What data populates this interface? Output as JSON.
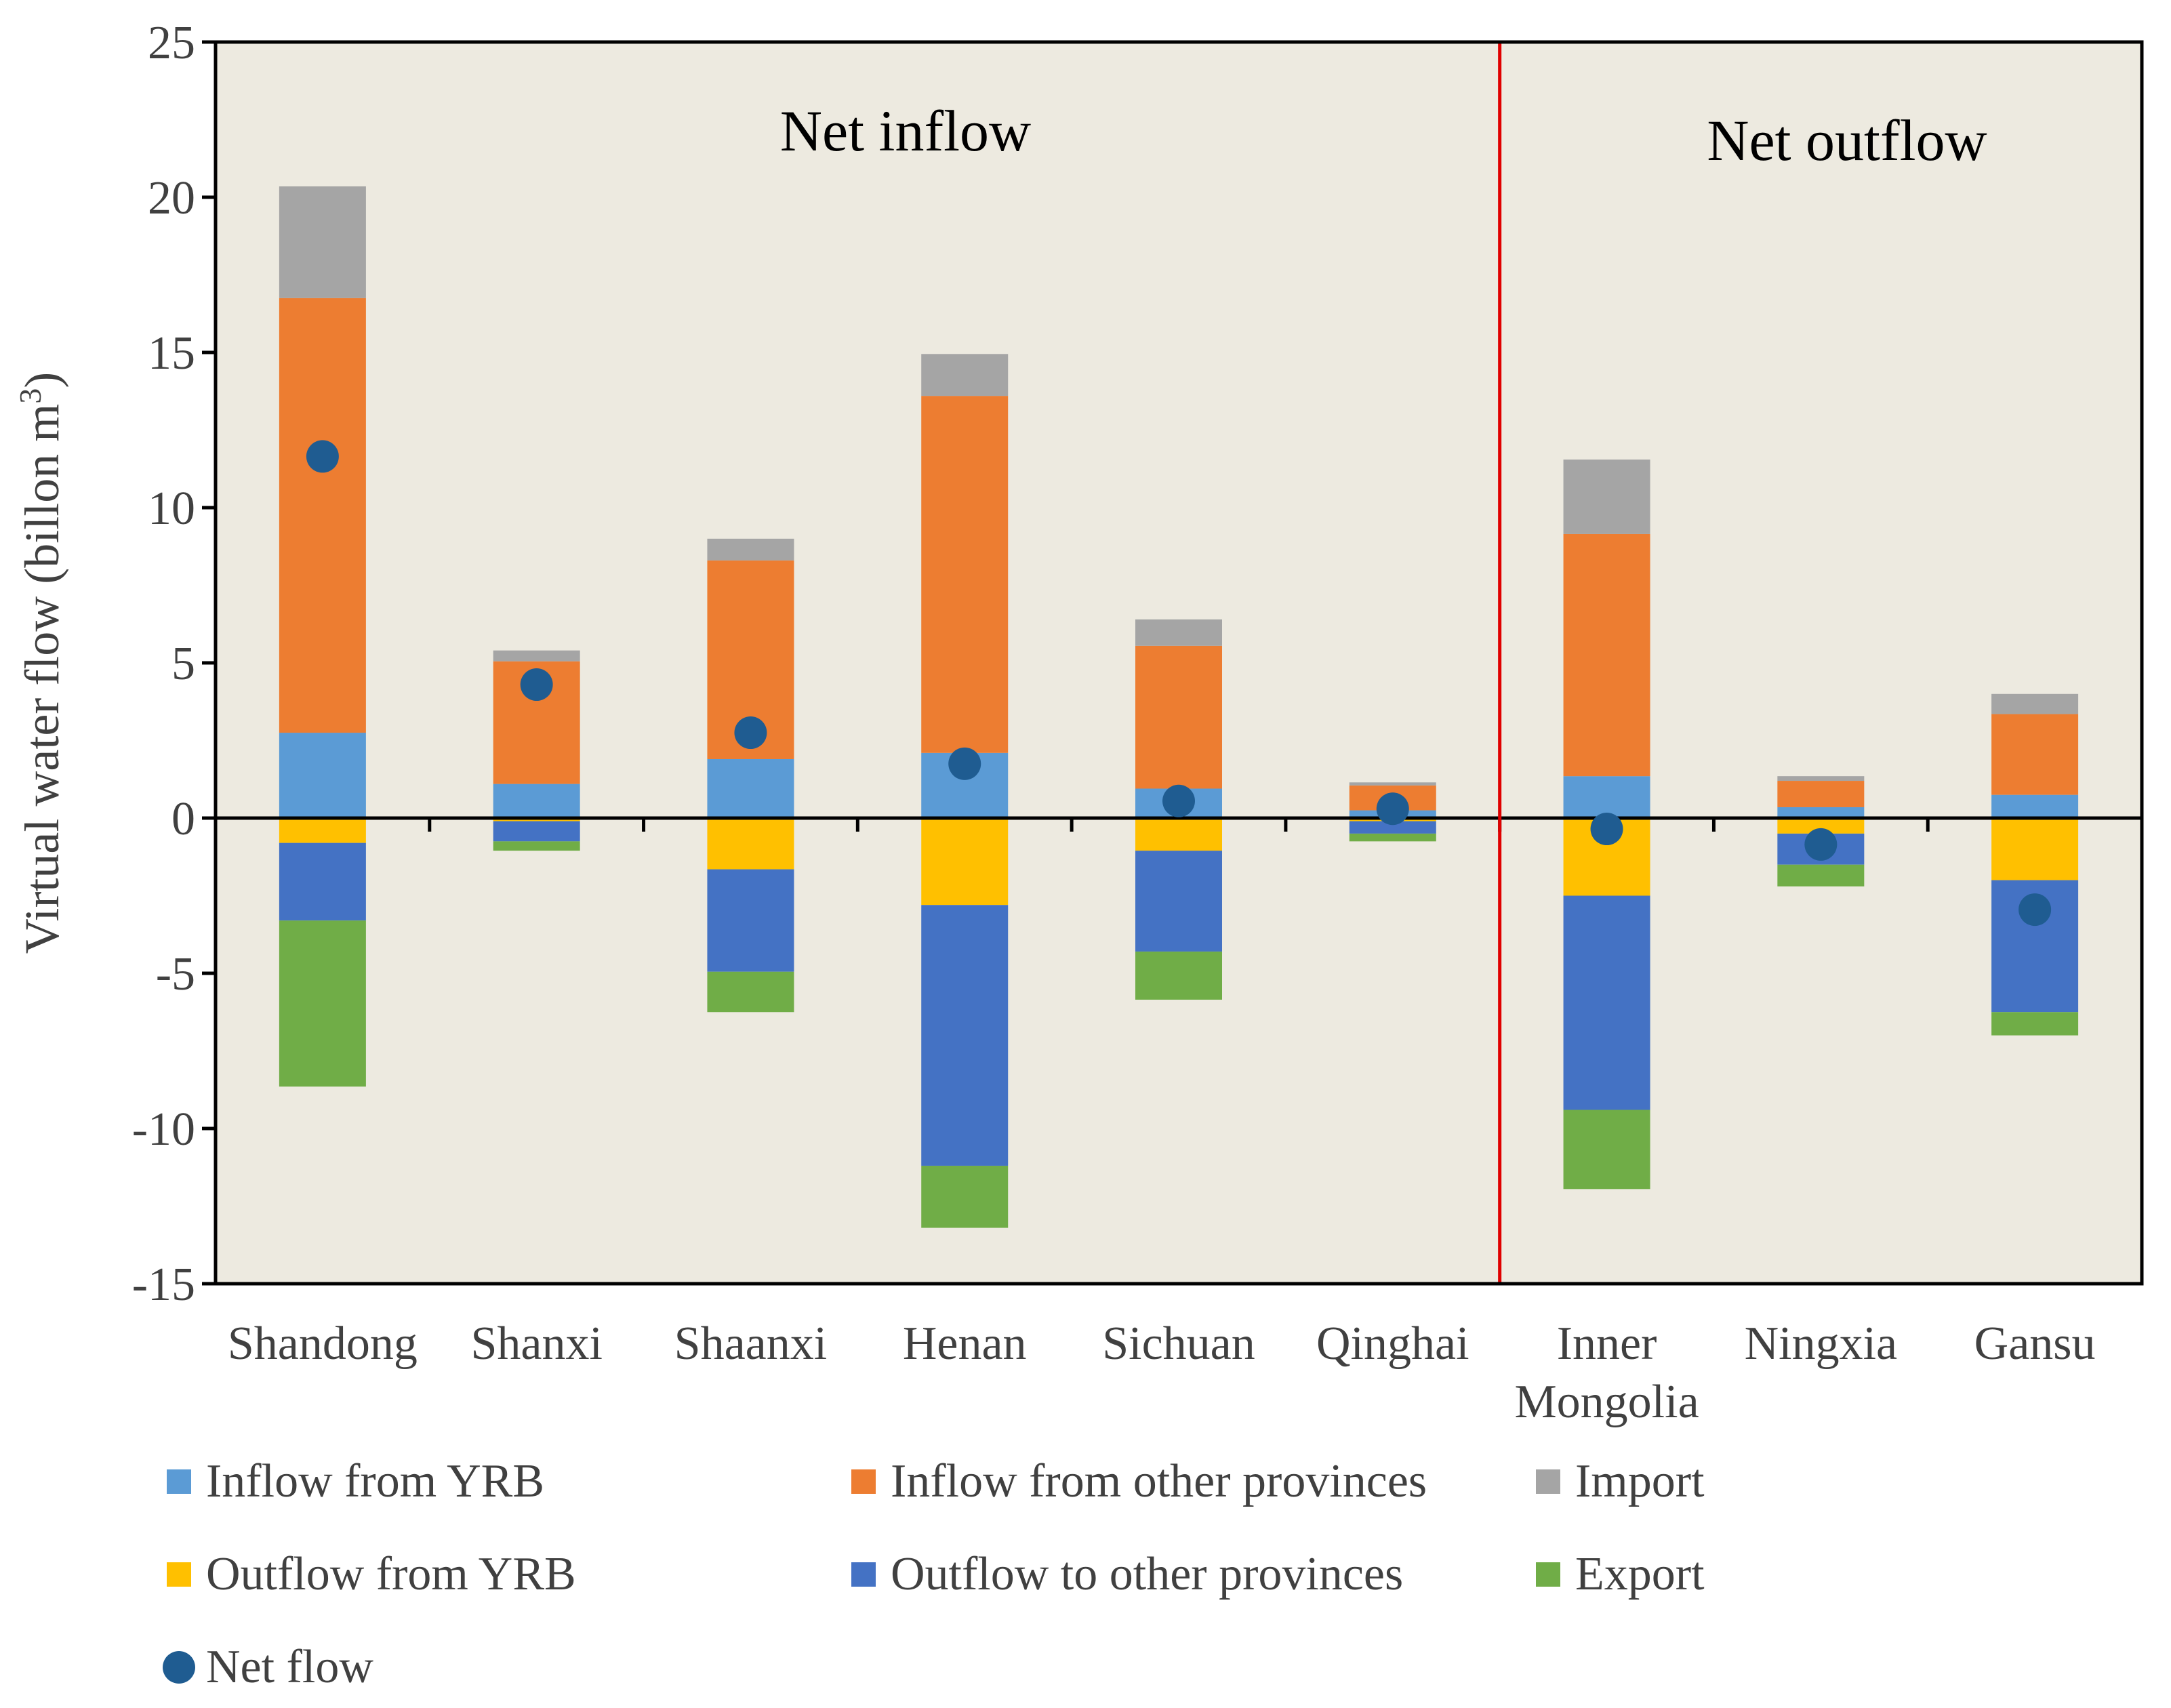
{
  "chart_data": {
    "type": "bar",
    "stacked": true,
    "title": "",
    "xlabel": "",
    "ylabel_main": "Virtual water flow (billon m",
    "ylabel_sup": "3",
    "ylabel_end": ")",
    "ylim": [
      -15,
      25
    ],
    "yticks": [
      -15,
      -10,
      -5,
      0,
      5,
      10,
      15,
      20,
      25
    ],
    "ytick_labels": [
      "-15",
      "-10",
      "-5",
      "0",
      "5",
      "10",
      "15",
      "20",
      "25"
    ],
    "categories": [
      {
        "id": "shandong",
        "lines": [
          "Shandong"
        ]
      },
      {
        "id": "shanxi",
        "lines": [
          "Shanxi"
        ]
      },
      {
        "id": "shaanxi",
        "lines": [
          "Shaanxi"
        ]
      },
      {
        "id": "henan",
        "lines": [
          "Henan"
        ]
      },
      {
        "id": "sichuan",
        "lines": [
          "Sichuan"
        ]
      },
      {
        "id": "qinghai",
        "lines": [
          "Qinghai"
        ]
      },
      {
        "id": "inner-mongolia",
        "lines": [
          "Inner",
          "Mongolia"
        ]
      },
      {
        "id": "ningxia",
        "lines": [
          "Ningxia"
        ]
      },
      {
        "id": "gansu",
        "lines": [
          "Gansu"
        ]
      }
    ],
    "positive_series": [
      {
        "id": "inflow-yrb",
        "name": "Inflow from YRB",
        "color": "#5B9BD5",
        "values": [
          2.75,
          1.1,
          1.9,
          2.1,
          0.95,
          0.25,
          1.35,
          0.35,
          0.75
        ]
      },
      {
        "id": "inflow-other",
        "name": "Inflow from other provinces",
        "color": "#ED7D31",
        "values": [
          14.0,
          3.95,
          6.4,
          11.5,
          4.6,
          0.8,
          7.8,
          0.85,
          2.6
        ]
      },
      {
        "id": "import",
        "name": "Import",
        "color": "#A5A5A5",
        "values": [
          3.6,
          0.35,
          0.7,
          1.35,
          0.85,
          0.1,
          2.4,
          0.15,
          0.65
        ]
      }
    ],
    "negative_series": [
      {
        "id": "outflow-yrb",
        "name": "Outflow from YRB",
        "color": "#FFC000",
        "values": [
          -0.8,
          -0.1,
          -1.65,
          -2.8,
          -1.05,
          -0.1,
          -2.5,
          -0.5,
          -2.0
        ]
      },
      {
        "id": "outflow-other",
        "name": "Outflow to other provinces",
        "color": "#4472C4",
        "values": [
          -2.5,
          -0.65,
          -3.3,
          -8.4,
          -3.25,
          -0.4,
          -6.9,
          -1.0,
          -4.25
        ]
      },
      {
        "id": "export",
        "name": "Export",
        "color": "#70AD47",
        "values": [
          -5.35,
          -0.3,
          -1.3,
          -2.0,
          -1.55,
          -0.25,
          -2.55,
          -0.7,
          -0.75
        ]
      }
    ],
    "net_series": {
      "id": "net-flow",
      "name": "Net flow",
      "color": "#1F5C91",
      "values": [
        11.65,
        4.3,
        2.75,
        1.75,
        0.55,
        0.3,
        -0.35,
        -0.85,
        -2.95
      ]
    },
    "divider": {
      "color": "#E00000",
      "after_category_index": 5
    },
    "annotations": [
      {
        "id": "net-inflow",
        "text": "Net inflow"
      },
      {
        "id": "net-outflow",
        "text": "Net outflow"
      }
    ],
    "legend": {
      "placement": "bottom",
      "order": [
        "inflow-yrb",
        "inflow-other",
        "import",
        "outflow-yrb",
        "outflow-other",
        "export",
        "net-flow"
      ]
    },
    "plot_background": "#EDEAE0",
    "grid": false
  }
}
